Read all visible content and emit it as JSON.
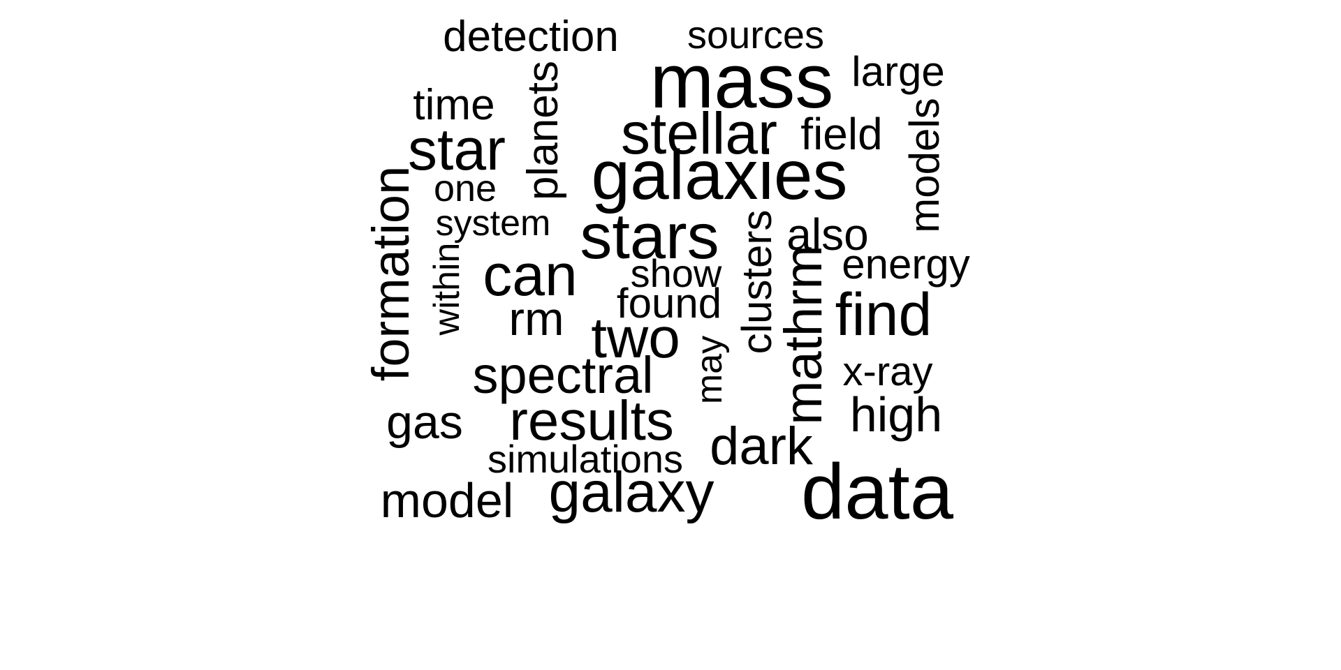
{
  "cloud": {
    "text_color": "#000000",
    "background_color": "#ffffff",
    "words": [
      {
        "text": "detection",
        "rotation": 0
      },
      {
        "text": "sources",
        "rotation": 0
      },
      {
        "text": "mass",
        "rotation": 0
      },
      {
        "text": "large",
        "rotation": 0
      },
      {
        "text": "planets",
        "rotation": -90
      },
      {
        "text": "time",
        "rotation": 0
      },
      {
        "text": "stellar",
        "rotation": 0
      },
      {
        "text": "field",
        "rotation": 0
      },
      {
        "text": "models",
        "rotation": -90
      },
      {
        "text": "star",
        "rotation": 0
      },
      {
        "text": "galaxies",
        "rotation": 0
      },
      {
        "text": "one",
        "rotation": 0
      },
      {
        "text": "formation",
        "rotation": -90
      },
      {
        "text": "system",
        "rotation": 0
      },
      {
        "text": "stars",
        "rotation": 0
      },
      {
        "text": "clusters",
        "rotation": -90
      },
      {
        "text": "also",
        "rotation": 0
      },
      {
        "text": "within",
        "rotation": -90
      },
      {
        "text": "can",
        "rotation": 0
      },
      {
        "text": "show",
        "rotation": 0
      },
      {
        "text": "mathrm",
        "rotation": -90
      },
      {
        "text": "energy",
        "rotation": 0
      },
      {
        "text": "found",
        "rotation": 0
      },
      {
        "text": "find",
        "rotation": 0
      },
      {
        "text": "rm",
        "rotation": 0
      },
      {
        "text": "two",
        "rotation": 0
      },
      {
        "text": "may",
        "rotation": -90
      },
      {
        "text": "spectral",
        "rotation": 0
      },
      {
        "text": "x-ray",
        "rotation": 0
      },
      {
        "text": "gas",
        "rotation": 0
      },
      {
        "text": "results",
        "rotation": 0
      },
      {
        "text": "high",
        "rotation": 0
      },
      {
        "text": "dark",
        "rotation": 0
      },
      {
        "text": "simulations",
        "rotation": 0
      },
      {
        "text": "model",
        "rotation": 0
      },
      {
        "text": "galaxy",
        "rotation": 0
      },
      {
        "text": "data",
        "rotation": 0
      }
    ]
  }
}
